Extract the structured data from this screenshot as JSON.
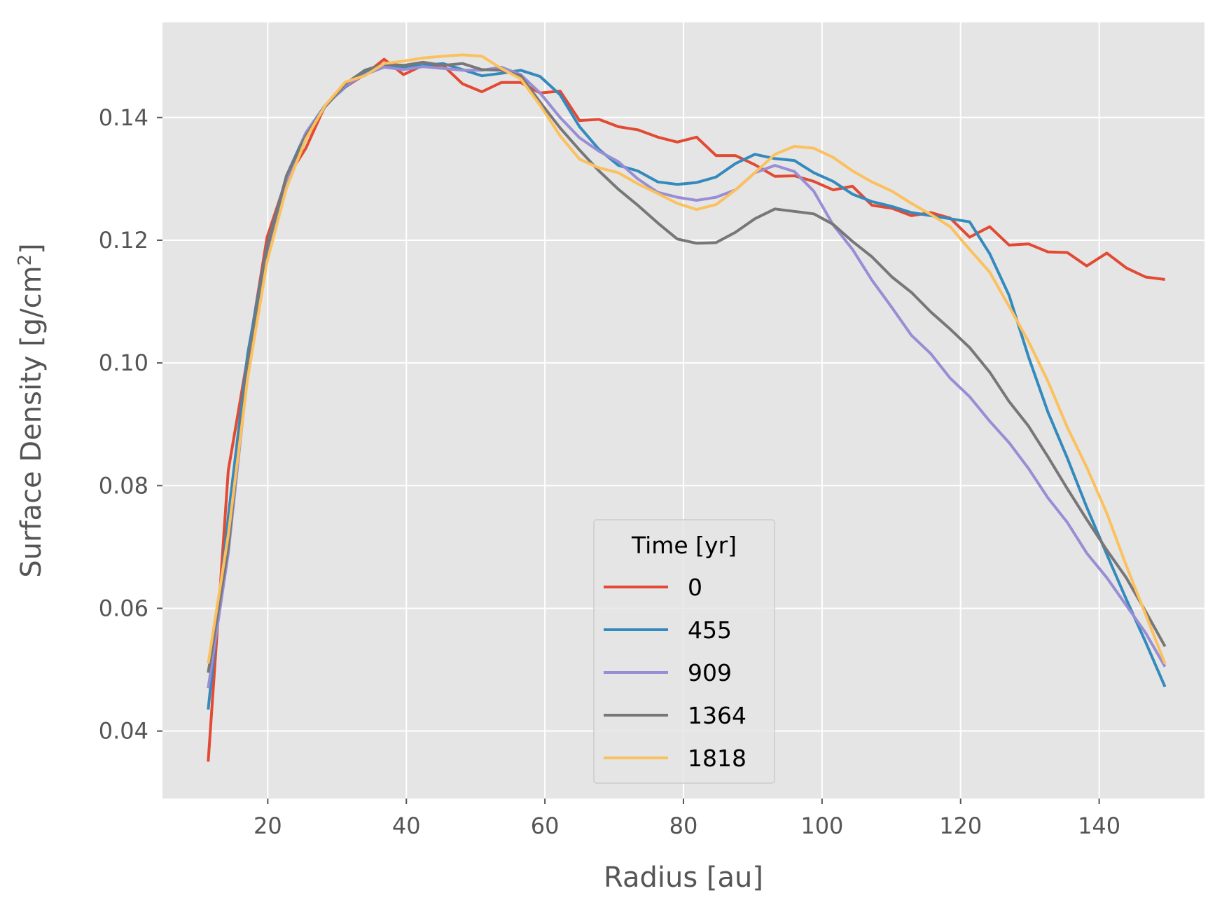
{
  "chart_data": {
    "type": "line",
    "title": "",
    "xlabel": "Radius [au]",
    "ylabel_main": "Surface Density [g/cm",
    "ylabel_sup": "2",
    "ylabel_end": "]",
    "xlim": [
      4.8,
      155.2
    ],
    "ylim": [
      0.029,
      0.1555
    ],
    "x_ticks": [
      20,
      40,
      60,
      80,
      100,
      120,
      140
    ],
    "x_tick_labels": [
      "20",
      "40",
      "60",
      "80",
      "100",
      "120",
      "140"
    ],
    "y_ticks": [
      0.04,
      0.06,
      0.08,
      0.1,
      0.12,
      0.14
    ],
    "y_tick_labels": [
      "0.04",
      "0.06",
      "0.08",
      "0.10",
      "0.12",
      "0.14"
    ],
    "grid": true,
    "legend_placement": "lower-center",
    "legend_title": "Time [yr]",
    "x": [
      11.4,
      14.3,
      17.1,
      19.9,
      22.7,
      25.5,
      28.3,
      31.2,
      34.0,
      36.8,
      39.6,
      42.4,
      45.3,
      48.1,
      50.9,
      53.7,
      56.5,
      59.3,
      62.2,
      65.0,
      67.8,
      70.6,
      73.4,
      76.3,
      79.1,
      81.9,
      84.7,
      87.5,
      90.3,
      93.2,
      96.0,
      98.8,
      101.6,
      104.4,
      107.2,
      110.1,
      112.9,
      115.7,
      118.5,
      121.3,
      124.2,
      127.0,
      129.8,
      132.6,
      135.4,
      138.2,
      141.1,
      143.9,
      146.7,
      149.5
    ],
    "series": [
      {
        "name": "0",
        "color": "#E24A33",
        "values": [
          0.035,
          0.0825,
          0.101,
          0.1205,
          0.13,
          0.135,
          0.142,
          0.145,
          0.147,
          0.1495,
          0.147,
          0.1485,
          0.1485,
          0.1455,
          0.1442,
          0.1457,
          0.1457,
          0.144,
          0.1443,
          0.1395,
          0.1397,
          0.1385,
          0.138,
          0.1368,
          0.136,
          0.1368,
          0.1338,
          0.1338,
          0.1323,
          0.1304,
          0.1305,
          0.1296,
          0.1282,
          0.1288,
          0.1257,
          0.1252,
          0.124,
          0.1245,
          0.1236,
          0.1205,
          0.1222,
          0.1192,
          0.1194,
          0.1181,
          0.118,
          0.1158,
          0.1179,
          0.1155,
          0.114,
          0.1136
        ]
      },
      {
        "name": "455",
        "color": "#348ABD",
        "values": [
          0.0435,
          0.075,
          0.1015,
          0.119,
          0.1305,
          0.1375,
          0.142,
          0.145,
          0.1475,
          0.1485,
          0.1482,
          0.1485,
          0.1488,
          0.1478,
          0.1468,
          0.1472,
          0.1477,
          0.1467,
          0.1437,
          0.1385,
          0.1348,
          0.1322,
          0.1313,
          0.1295,
          0.1291,
          0.1294,
          0.1303,
          0.1325,
          0.134,
          0.1333,
          0.133,
          0.131,
          0.1296,
          0.1275,
          0.1263,
          0.1255,
          0.1245,
          0.124,
          0.1235,
          0.123,
          0.1178,
          0.111,
          0.101,
          0.092,
          0.0845,
          0.0765,
          0.0688,
          0.0615,
          0.0545,
          0.0472
        ]
      },
      {
        "name": "909",
        "color": "#988ED5",
        "values": [
          0.047,
          0.069,
          0.0985,
          0.1175,
          0.1295,
          0.1375,
          0.1418,
          0.1452,
          0.147,
          0.1482,
          0.1478,
          0.1483,
          0.148,
          0.1477,
          0.1477,
          0.1482,
          0.147,
          0.144,
          0.14,
          0.1367,
          0.1345,
          0.1328,
          0.13,
          0.1278,
          0.127,
          0.1265,
          0.127,
          0.1282,
          0.131,
          0.1322,
          0.1312,
          0.128,
          0.1225,
          0.1185,
          0.1135,
          0.109,
          0.1045,
          0.1015,
          0.0975,
          0.0945,
          0.0905,
          0.087,
          0.0828,
          0.078,
          0.074,
          0.069,
          0.065,
          0.0605,
          0.056,
          0.0505
        ]
      },
      {
        "name": "1364",
        "color": "#777777",
        "values": [
          0.0495,
          0.07,
          0.1,
          0.1185,
          0.1305,
          0.137,
          0.1418,
          0.1455,
          0.1477,
          0.1487,
          0.1485,
          0.149,
          0.1485,
          0.1488,
          0.1478,
          0.1477,
          0.1468,
          0.1425,
          0.1383,
          0.1347,
          0.1313,
          0.1283,
          0.1257,
          0.1228,
          0.1202,
          0.1195,
          0.1196,
          0.1213,
          0.1235,
          0.1251,
          0.1247,
          0.1243,
          0.1226,
          0.1198,
          0.1173,
          0.114,
          0.1115,
          0.1083,
          0.1055,
          0.1025,
          0.0985,
          0.0937,
          0.0897,
          0.0847,
          0.0795,
          0.0745,
          0.0695,
          0.065,
          0.0595,
          0.0538
        ]
      },
      {
        "name": "1818",
        "color": "#FBC15E",
        "values": [
          0.051,
          0.072,
          0.0975,
          0.1165,
          0.1285,
          0.1365,
          0.142,
          0.1458,
          0.1468,
          0.1488,
          0.1492,
          0.1497,
          0.15,
          0.1502,
          0.15,
          0.148,
          0.1463,
          0.142,
          0.137,
          0.1332,
          0.1318,
          0.131,
          0.1292,
          0.1276,
          0.126,
          0.125,
          0.1258,
          0.1282,
          0.131,
          0.134,
          0.1353,
          0.135,
          0.1335,
          0.1313,
          0.1295,
          0.128,
          0.126,
          0.1242,
          0.1222,
          0.1185,
          0.1148,
          0.1092,
          0.1035,
          0.097,
          0.0895,
          0.083,
          0.0755,
          0.067,
          0.059,
          0.051
        ]
      }
    ]
  }
}
